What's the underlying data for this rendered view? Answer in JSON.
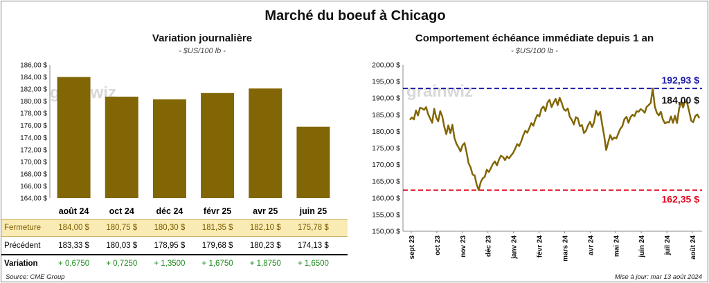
{
  "title": "Marché du boeuf à Chicago",
  "watermark": "grainwiz",
  "footer": {
    "source": "Source: CME Group",
    "updated": "Mise à jour: mar 13 août 2024"
  },
  "colors": {
    "bar": "#826605",
    "line": "#826605",
    "high": "#1c1ca8",
    "low": "#e0001a",
    "close_row_bg": "#faebb4",
    "positive": "#1e8c1e"
  },
  "table": {
    "headers": [
      "août 24",
      "oct 24",
      "déc 24",
      "févr 25",
      "avr 25",
      "juin 25"
    ],
    "rows": [
      {
        "label": "Fermeture",
        "values": [
          "184,00  $",
          "180,75  $",
          "180,30  $",
          "181,35  $",
          "182,10  $",
          "175,78  $"
        ]
      },
      {
        "label": "Précédent",
        "values": [
          "183,33  $",
          "180,03  $",
          "178,95  $",
          "179,68  $",
          "180,23  $",
          "174,13  $"
        ]
      },
      {
        "label": "Variation",
        "values": [
          "+ 0,6750",
          "+ 0,7250",
          "+ 1,3500",
          "+ 1,6750",
          "+ 1,8750",
          "+ 1,6500"
        ]
      }
    ]
  },
  "chart_data": [
    {
      "type": "bar",
      "title": "Variation journalière",
      "subtitle": "- $US/100 lb -",
      "categories": [
        "août 24",
        "oct 24",
        "déc 24",
        "févr 25",
        "avr 25",
        "juin 25"
      ],
      "values": [
        184.0,
        180.75,
        180.3,
        181.35,
        182.1,
        175.78
      ],
      "ylim": [
        164,
        186
      ],
      "yticks": [
        "164,00 $",
        "166,00 $",
        "168,00 $",
        "170,00 $",
        "172,00 $",
        "174,00 $",
        "176,00 $",
        "178,00 $",
        "180,00 $",
        "182,00 $",
        "184,00 $",
        "186,00 $"
      ],
      "grid": false
    },
    {
      "type": "line",
      "title": "Comportement  échéance immédiate depuis 1 an",
      "subtitle": "- $US/100 lb -",
      "ylim": [
        150,
        200
      ],
      "yticks": [
        "150,00 $",
        "155,00 $",
        "160,00 $",
        "165,00 $",
        "170,00 $",
        "175,00 $",
        "180,00 $",
        "185,00 $",
        "190,00 $",
        "195,00 $",
        "200,00 $"
      ],
      "x_labels": [
        "sept 23",
        "oct 23",
        "nov 23",
        "déc 23",
        "janv 24",
        "févr 24",
        "mars 24",
        "avr 24",
        "mai 24",
        "juin 24",
        "juil 24",
        "août 24"
      ],
      "high": {
        "value": 192.93,
        "label": "192,93 $"
      },
      "low": {
        "value": 162.35,
        "label": "162,35 $"
      },
      "last": {
        "value": 184.0,
        "label": "184,00 $"
      },
      "series": [
        {
          "values": [
            183.5,
            184.2,
            183.6,
            186.3,
            184.8,
            187.1,
            186.9,
            186.5,
            187.3,
            185.2,
            183.9,
            182.6,
            186.8,
            184.2,
            183.0,
            186.1,
            184.5,
            181.4,
            179.2,
            181.8,
            179.5,
            182.0,
            178.1,
            176.3,
            175.2,
            174.0,
            175.8,
            176.5,
            173.8,
            170.4,
            169.2,
            167.0,
            166.8,
            164.0,
            162.35,
            164.8,
            165.9,
            166.4,
            168.5,
            167.8,
            168.9,
            170.2,
            171.0,
            169.8,
            171.5,
            172.7,
            172.3,
            171.4,
            172.5,
            171.9,
            172.8,
            173.5,
            174.8,
            176.2,
            175.6,
            177.0,
            178.8,
            180.2,
            179.6,
            181.0,
            182.5,
            181.7,
            183.6,
            185.0,
            184.5,
            186.8,
            187.5,
            186.1,
            188.7,
            189.5,
            187.3,
            188.6,
            189.8,
            187.9,
            190.1,
            188.6,
            186.7,
            186.2,
            186.9,
            184.4,
            183.5,
            182.1,
            184.3,
            183.9,
            181.6,
            181.9,
            179.5,
            180.2,
            181.8,
            182.9,
            181.3,
            182.8,
            186.2,
            184.8,
            185.9,
            182.1,
            178.7,
            174.4,
            176.8,
            178.9,
            177.5,
            178.2,
            177.9,
            179.4,
            180.8,
            181.6,
            183.7,
            184.4,
            182.6,
            184.3,
            185.0,
            184.6,
            186.1,
            185.9,
            186.7,
            186.3,
            185.6,
            187.4,
            187.9,
            188.6,
            192.93,
            187.5,
            185.6,
            184.8,
            185.9,
            183.6,
            182.4,
            182.8,
            182.7,
            184.5,
            182.6,
            184.7,
            182.5,
            186.8,
            188.9,
            187.2,
            189.1,
            188.5,
            186.0,
            183.2,
            182.8,
            184.6,
            185.1,
            184.0
          ]
        }
      ]
    }
  ]
}
